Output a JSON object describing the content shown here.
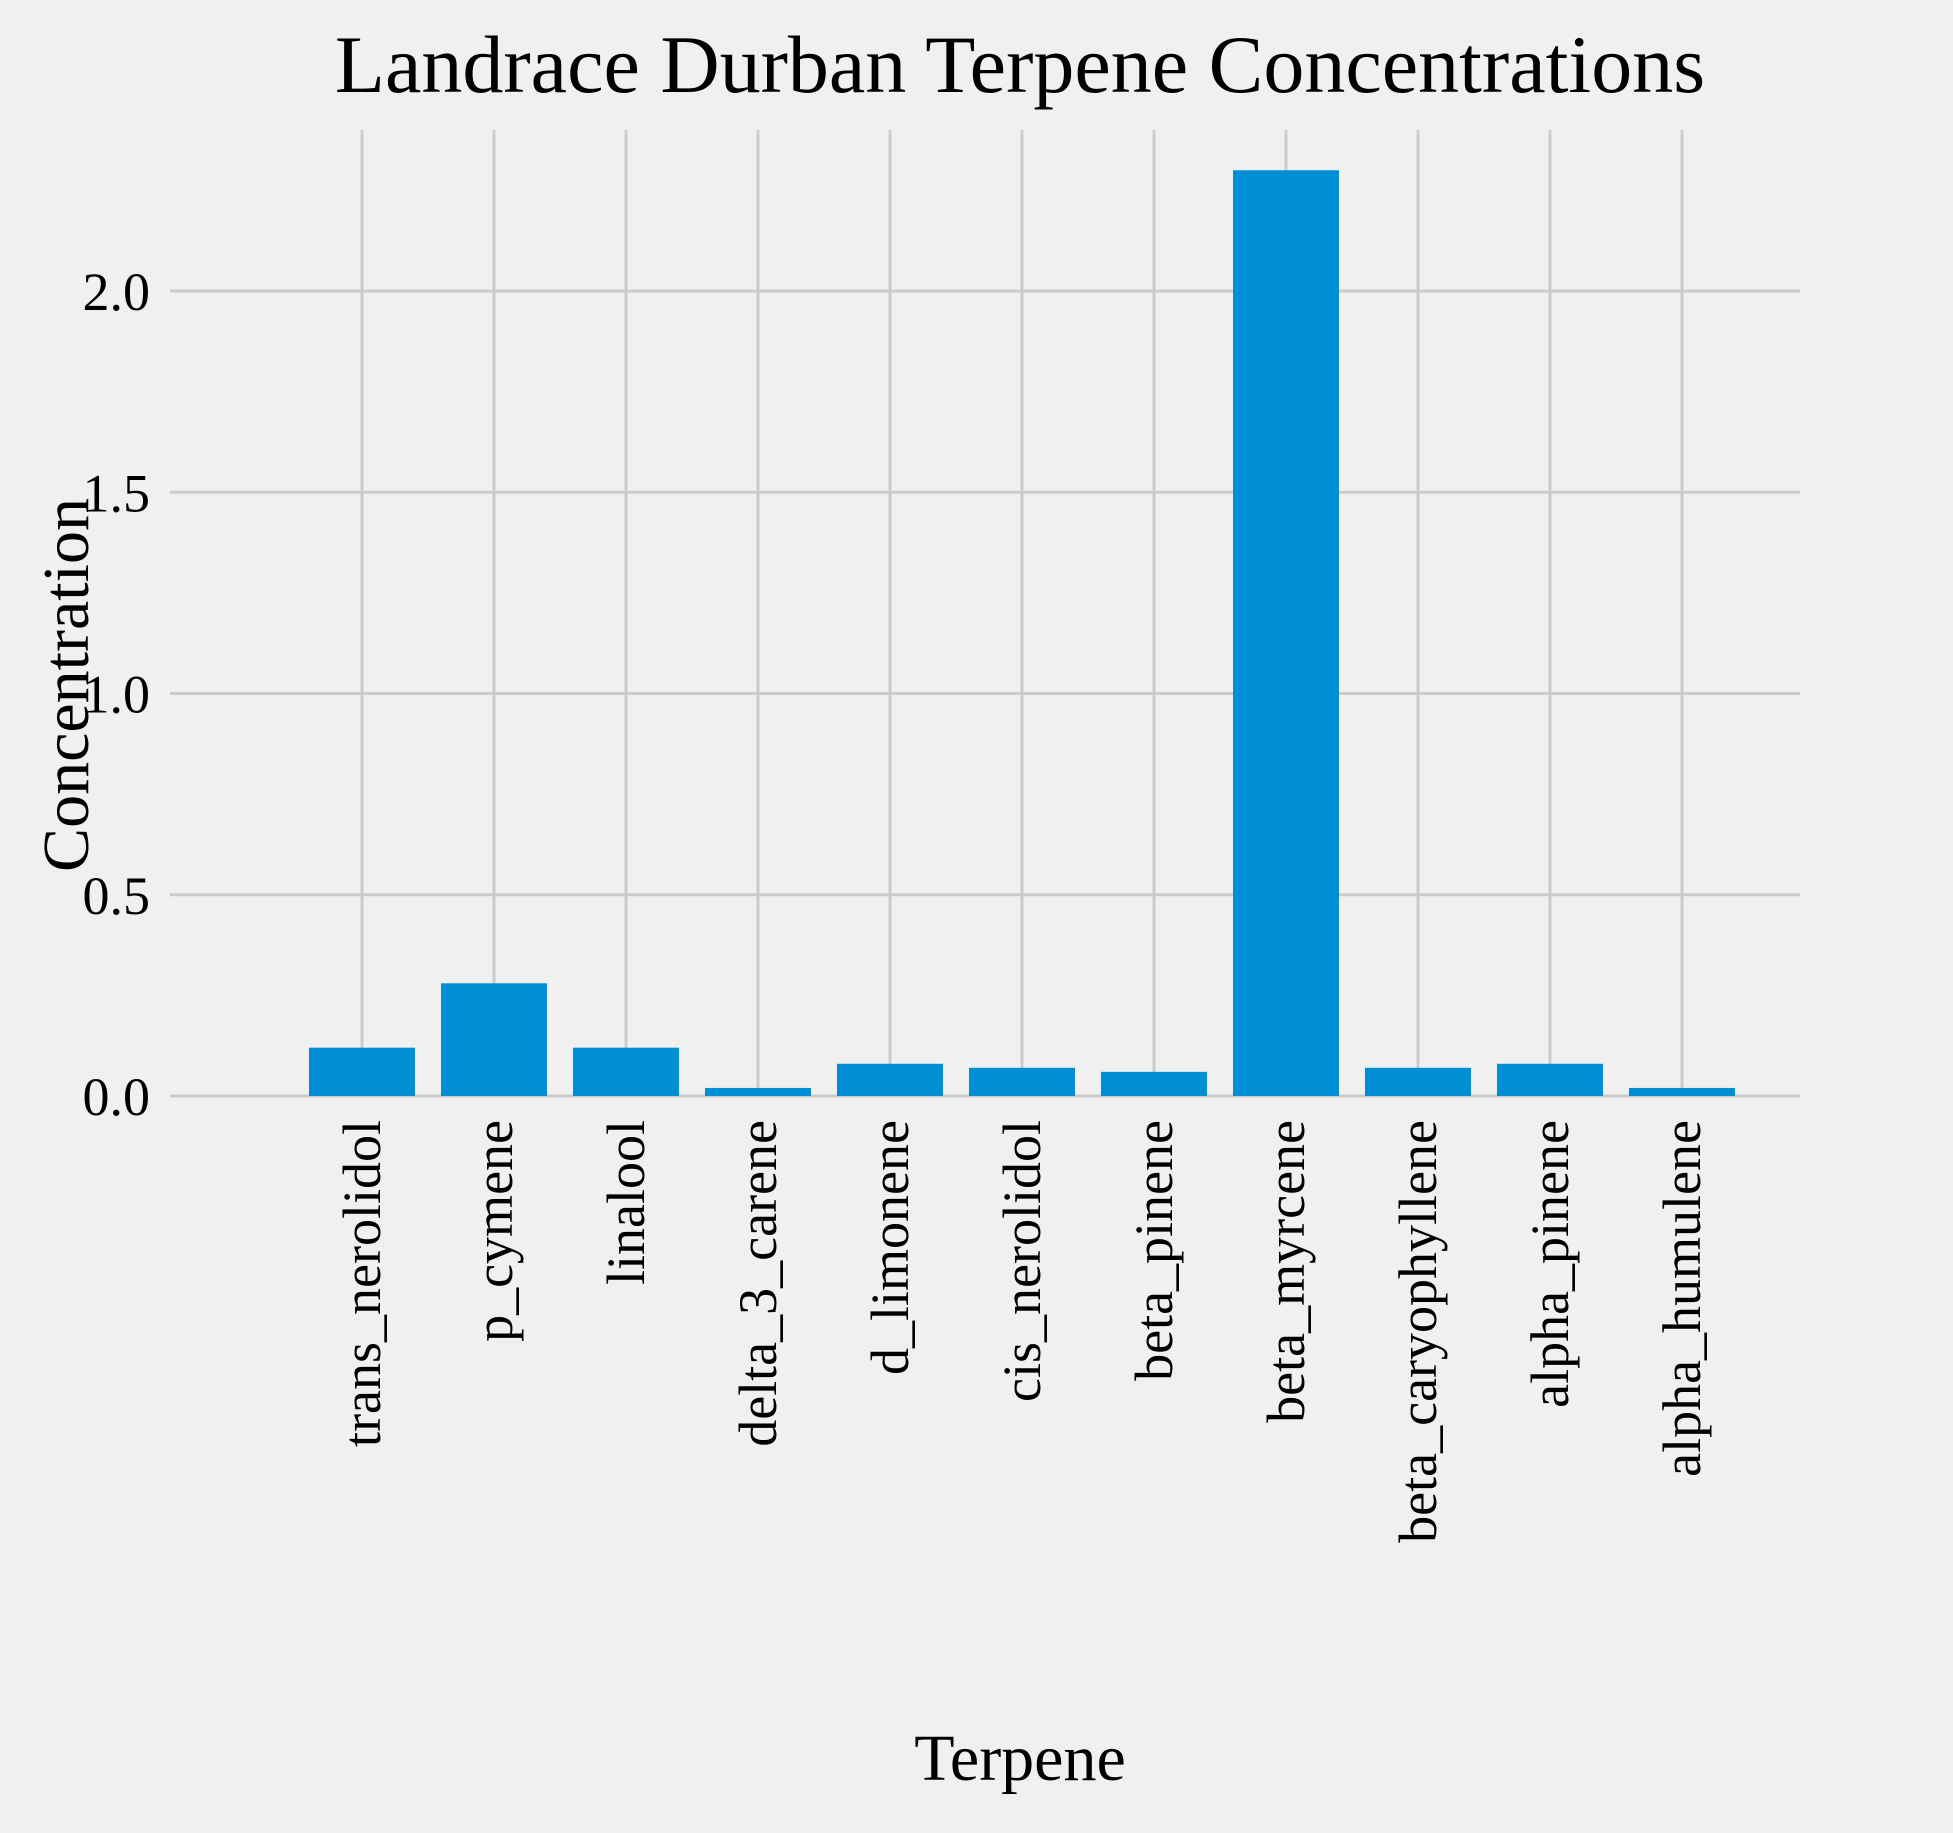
{
  "chart_data": {
    "type": "bar",
    "title": "Landrace Durban Terpene Concentrations",
    "xlabel": "Terpene",
    "ylabel": "Concentration",
    "categories": [
      "trans_nerolidol",
      "p_cymene",
      "linalool",
      "delta_3_carene",
      "d_limonene",
      "cis_nerolidol",
      "beta_pinene",
      "beta_myrcene",
      "beta_caryophyllene",
      "alpha_pinene",
      "alpha_humulene"
    ],
    "values": [
      0.12,
      0.28,
      0.12,
      0.02,
      0.08,
      0.07,
      0.06,
      2.3,
      0.07,
      0.08,
      0.02
    ],
    "ylim": [
      0,
      2.4
    ],
    "yticks": [
      0.0,
      0.5,
      1.0,
      1.5,
      2.0
    ],
    "ytick_labels": [
      "0.0",
      "0.5",
      "1.0",
      "1.5",
      "2.0"
    ],
    "grid": true,
    "bar_color": "#008fd5",
    "background_color": "#f0f0f0",
    "grid_color": "#cbcbcb"
  }
}
